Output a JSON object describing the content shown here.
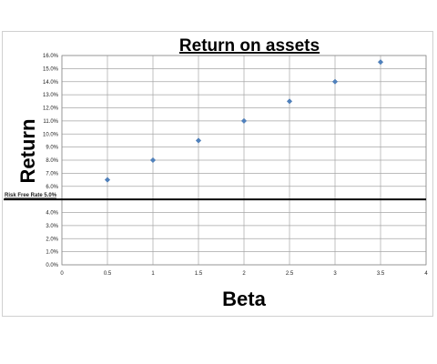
{
  "chart_data": {
    "type": "scatter",
    "title": "Return on assets",
    "xlabel": "Beta",
    "ylabel": "Return",
    "x": [
      0.5,
      1,
      1.5,
      2,
      2.5,
      3,
      3.5
    ],
    "y": [
      6.5,
      8.0,
      9.5,
      11.0,
      12.5,
      14.0,
      15.5
    ],
    "xlim": [
      0,
      4
    ],
    "ylim": [
      0,
      16
    ],
    "x_ticks": [
      0,
      0.5,
      1,
      1.5,
      2,
      2.5,
      3,
      3.5,
      4
    ],
    "x_tick_labels": [
      "0",
      "0.5",
      "1",
      "1.5",
      "2",
      "2.5",
      "3",
      "3.5",
      "4"
    ],
    "y_ticks": [
      0,
      1,
      2,
      3,
      4,
      5,
      6,
      7,
      8,
      9,
      10,
      11,
      12,
      13,
      14,
      15,
      16
    ],
    "y_tick_labels": [
      "0.0%",
      "1.0%",
      "2.0%",
      "3.0%",
      "4.0%",
      "",
      "6.0%",
      "7.0%",
      "8.0%",
      "9.0%",
      "10.0%",
      "11.0%",
      "12.0%",
      "13.0%",
      "14.0%",
      "15.0%",
      "16.0%"
    ],
    "grid": true,
    "marker_color": "#4f81bd",
    "reference_line": {
      "label": "Risk Free Rate 5.0%",
      "value": 5.0,
      "color": "#000000"
    }
  }
}
